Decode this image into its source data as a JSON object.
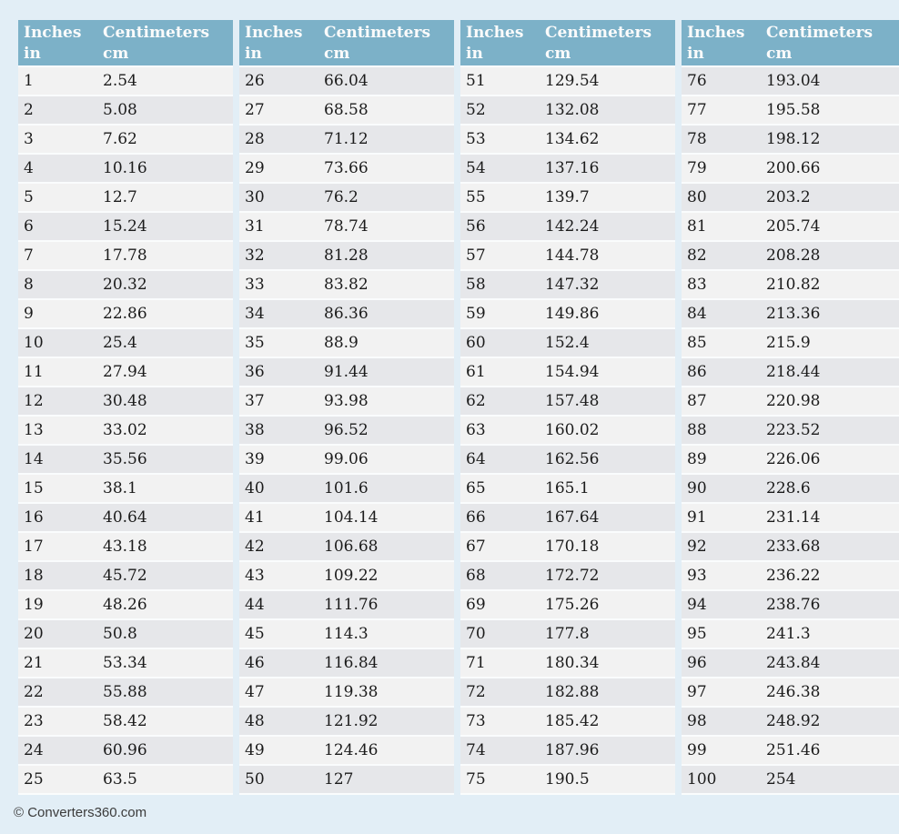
{
  "theme": {
    "page_background": "#e2eef6",
    "header_background": "#7cb1c8",
    "header_text_color": "#fbfbfb",
    "row_odd_background": "#f2f2f2",
    "row_even_background": "#e6e7ea",
    "row_divider_color": "#fafcfd",
    "cell_text_color": "#1b1b1b",
    "footer_text_color": "#3b3b3b"
  },
  "columns": {
    "inches_title": "Inches",
    "inches_unit": "in",
    "cm_title": "Centimeters",
    "cm_unit": "cm"
  },
  "footer": {
    "copyright": "© Converters360.com"
  },
  "tables": [
    {
      "rows": [
        [
          "1",
          "2.54"
        ],
        [
          "2",
          "5.08"
        ],
        [
          "3",
          "7.62"
        ],
        [
          "4",
          "10.16"
        ],
        [
          "5",
          "12.7"
        ],
        [
          "6",
          "15.24"
        ],
        [
          "7",
          "17.78"
        ],
        [
          "8",
          "20.32"
        ],
        [
          "9",
          "22.86"
        ],
        [
          "10",
          "25.4"
        ],
        [
          "11",
          "27.94"
        ],
        [
          "12",
          "30.48"
        ],
        [
          "13",
          "33.02"
        ],
        [
          "14",
          "35.56"
        ],
        [
          "15",
          "38.1"
        ],
        [
          "16",
          "40.64"
        ],
        [
          "17",
          "43.18"
        ],
        [
          "18",
          "45.72"
        ],
        [
          "19",
          "48.26"
        ],
        [
          "20",
          "50.8"
        ],
        [
          "21",
          "53.34"
        ],
        [
          "22",
          "55.88"
        ],
        [
          "23",
          "58.42"
        ],
        [
          "24",
          "60.96"
        ],
        [
          "25",
          "63.5"
        ]
      ]
    },
    {
      "rows": [
        [
          "26",
          "66.04"
        ],
        [
          "27",
          "68.58"
        ],
        [
          "28",
          "71.12"
        ],
        [
          "29",
          "73.66"
        ],
        [
          "30",
          "76.2"
        ],
        [
          "31",
          "78.74"
        ],
        [
          "32",
          "81.28"
        ],
        [
          "33",
          "83.82"
        ],
        [
          "34",
          "86.36"
        ],
        [
          "35",
          "88.9"
        ],
        [
          "36",
          "91.44"
        ],
        [
          "37",
          "93.98"
        ],
        [
          "38",
          "96.52"
        ],
        [
          "39",
          "99.06"
        ],
        [
          "40",
          "101.6"
        ],
        [
          "41",
          "104.14"
        ],
        [
          "42",
          "106.68"
        ],
        [
          "43",
          "109.22"
        ],
        [
          "44",
          "111.76"
        ],
        [
          "45",
          "114.3"
        ],
        [
          "46",
          "116.84"
        ],
        [
          "47",
          "119.38"
        ],
        [
          "48",
          "121.92"
        ],
        [
          "49",
          "124.46"
        ],
        [
          "50",
          "127"
        ]
      ]
    },
    {
      "rows": [
        [
          "51",
          "129.54"
        ],
        [
          "52",
          "132.08"
        ],
        [
          "53",
          "134.62"
        ],
        [
          "54",
          "137.16"
        ],
        [
          "55",
          "139.7"
        ],
        [
          "56",
          "142.24"
        ],
        [
          "57",
          "144.78"
        ],
        [
          "58",
          "147.32"
        ],
        [
          "59",
          "149.86"
        ],
        [
          "60",
          "152.4"
        ],
        [
          "61",
          "154.94"
        ],
        [
          "62",
          "157.48"
        ],
        [
          "63",
          "160.02"
        ],
        [
          "64",
          "162.56"
        ],
        [
          "65",
          "165.1"
        ],
        [
          "66",
          "167.64"
        ],
        [
          "67",
          "170.18"
        ],
        [
          "68",
          "172.72"
        ],
        [
          "69",
          "175.26"
        ],
        [
          "70",
          "177.8"
        ],
        [
          "71",
          "180.34"
        ],
        [
          "72",
          "182.88"
        ],
        [
          "73",
          "185.42"
        ],
        [
          "74",
          "187.96"
        ],
        [
          "75",
          "190.5"
        ]
      ]
    },
    {
      "rows": [
        [
          "76",
          "193.04"
        ],
        [
          "77",
          "195.58"
        ],
        [
          "78",
          "198.12"
        ],
        [
          "79",
          "200.66"
        ],
        [
          "80",
          "203.2"
        ],
        [
          "81",
          "205.74"
        ],
        [
          "82",
          "208.28"
        ],
        [
          "83",
          "210.82"
        ],
        [
          "84",
          "213.36"
        ],
        [
          "85",
          "215.9"
        ],
        [
          "86",
          "218.44"
        ],
        [
          "87",
          "220.98"
        ],
        [
          "88",
          "223.52"
        ],
        [
          "89",
          "226.06"
        ],
        [
          "90",
          "228.6"
        ],
        [
          "91",
          "231.14"
        ],
        [
          "92",
          "233.68"
        ],
        [
          "93",
          "236.22"
        ],
        [
          "94",
          "238.76"
        ],
        [
          "95",
          "241.3"
        ],
        [
          "96",
          "243.84"
        ],
        [
          "97",
          "246.38"
        ],
        [
          "98",
          "248.92"
        ],
        [
          "99",
          "251.46"
        ],
        [
          "100",
          "254"
        ]
      ]
    }
  ]
}
